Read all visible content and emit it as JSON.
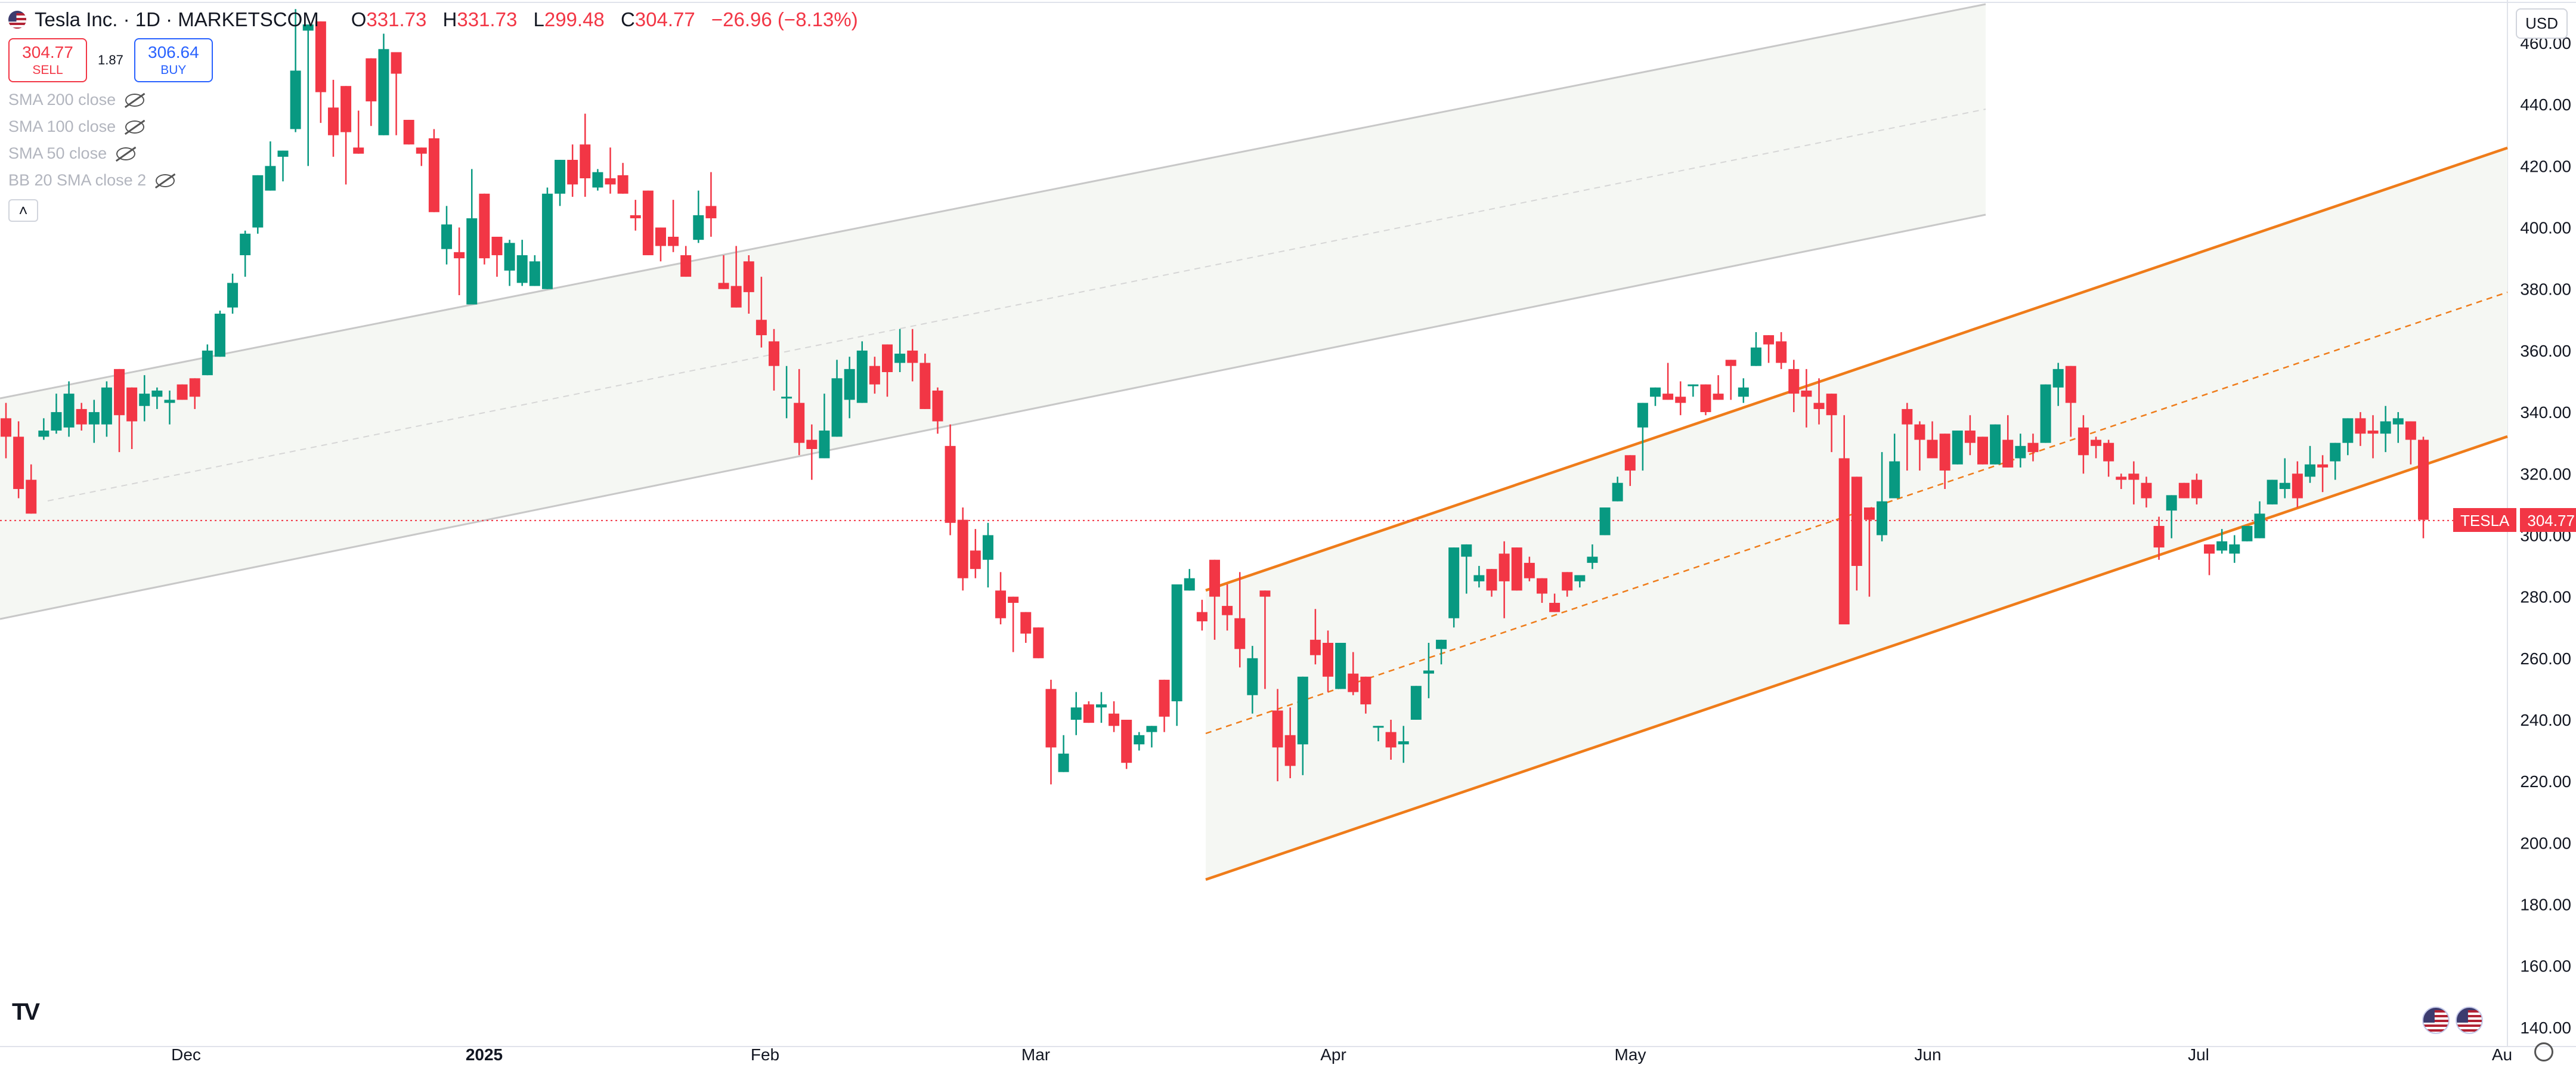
{
  "header": {
    "symbol_title": "Tesla Inc. · 1D · MARKETSCOM",
    "ohlc": [
      {
        "key": "O",
        "value": "331.73"
      },
      {
        "key": "H",
        "value": "331.73"
      },
      {
        "key": "L",
        "value": "299.48"
      },
      {
        "key": "C",
        "value": "304.77"
      }
    ],
    "change": "−26.96 (−8.13%)"
  },
  "trade": {
    "sell_price": "304.77",
    "sell_label": "SELL",
    "spread": "1.87",
    "buy_price": "306.64",
    "buy_label": "BUY"
  },
  "indicators": [
    {
      "label": "SMA 200 close"
    },
    {
      "label": "SMA 100 close"
    },
    {
      "label": "SMA 50 close"
    },
    {
      "label": "BB 20 SMA close 2"
    }
  ],
  "collapse_icon": "chevron-up-icon",
  "currency": "USD",
  "last_price_label": {
    "symbol": "TESLA",
    "price": "304.77"
  },
  "colors": {
    "up": "#089981",
    "down": "#f23645",
    "channel": "#ef7c1a",
    "channel_old": "#c8c8c8",
    "fill": "#f5f7f3"
  },
  "chart_data": {
    "type": "candlestick",
    "title": "",
    "y_axis": {
      "range": [
        135,
        465
      ],
      "tick_labels": [
        "140.00",
        "160.00",
        "180.00",
        "200.00",
        "220.00",
        "240.00",
        "260.00",
        "280.00",
        "300.00",
        "320.00",
        "340.00",
        "360.00",
        "380.00",
        "400.00",
        "420.00",
        "440.00",
        "460.00"
      ]
    },
    "x_axis": {
      "labels": [
        "Dec",
        "2025",
        "Feb",
        "Mar",
        "Apr",
        "May",
        "Jun",
        "Jul",
        "Au"
      ]
    },
    "last_close": 304.77,
    "candles": [
      [
        338,
        332,
        343,
        325
      ],
      [
        332,
        315,
        337,
        312
      ],
      [
        318,
        307,
        323,
        307
      ],
      [
        332,
        334,
        338,
        331
      ],
      [
        334,
        340,
        346,
        333
      ],
      [
        335,
        346,
        350,
        332
      ],
      [
        341,
        336,
        343,
        334
      ],
      [
        336,
        340,
        344,
        330
      ],
      [
        336,
        348,
        350,
        332
      ],
      [
        354,
        339,
        353,
        327
      ],
      [
        348,
        337,
        345,
        328
      ],
      [
        342,
        346,
        352,
        337
      ],
      [
        345,
        347,
        348,
        341
      ],
      [
        343,
        344,
        347,
        336
      ],
      [
        349,
        344,
        348,
        344
      ],
      [
        351,
        345,
        349,
        341
      ],
      [
        352,
        360,
        362,
        355
      ],
      [
        358,
        372,
        373,
        370
      ],
      [
        374,
        382,
        385,
        372
      ],
      [
        391,
        398,
        399,
        384
      ],
      [
        400,
        417,
        415,
        398
      ],
      [
        412,
        420,
        428,
        417
      ],
      [
        423,
        425,
        421,
        415
      ],
      [
        432,
        451,
        471,
        431
      ],
      [
        464,
        466,
        465,
        420
      ],
      [
        467,
        444,
        464,
        434
      ],
      [
        439,
        430,
        448,
        423
      ],
      [
        446,
        431,
        444,
        414
      ],
      [
        426,
        424,
        438,
        424
      ],
      [
        455,
        441,
        454,
        433
      ],
      [
        430,
        458,
        463,
        448
      ],
      [
        457,
        450,
        457,
        430
      ],
      [
        435,
        427,
        434,
        430
      ],
      [
        426,
        424,
        425,
        420
      ],
      [
        429,
        405,
        432,
        405
      ],
      [
        393,
        401,
        407,
        388
      ],
      [
        392,
        390,
        400,
        378
      ],
      [
        375,
        403,
        419,
        376
      ],
      [
        411,
        390,
        410,
        388
      ],
      [
        397,
        391,
        394,
        384
      ],
      [
        386,
        395,
        396,
        381
      ],
      [
        382,
        391,
        396,
        381
      ],
      [
        381,
        389,
        391,
        384
      ],
      [
        380,
        411,
        413,
        380
      ],
      [
        411,
        422,
        421,
        407
      ],
      [
        422,
        414,
        427,
        410
      ],
      [
        427,
        416,
        437,
        410
      ],
      [
        413,
        418,
        419,
        412
      ],
      [
        416,
        414,
        426,
        411
      ],
      [
        417,
        411,
        421,
        413
      ],
      [
        404,
        403,
        409,
        399
      ],
      [
        412,
        391,
        410,
        391
      ],
      [
        400,
        394,
        398,
        389
      ],
      [
        397,
        394,
        409,
        392
      ],
      [
        391,
        384,
        394,
        390
      ],
      [
        396,
        404,
        412,
        395
      ],
      [
        407,
        403,
        418,
        397
      ],
      [
        382,
        380,
        391,
        384
      ],
      [
        381,
        374,
        394,
        380
      ],
      [
        389,
        379,
        391,
        372
      ],
      [
        370,
        365,
        384,
        361
      ],
      [
        363,
        355,
        367,
        347
      ],
      [
        345,
        345,
        355,
        338
      ],
      [
        343,
        330,
        354,
        326
      ],
      [
        331,
        328,
        336,
        318
      ],
      [
        325,
        334,
        346,
        329
      ],
      [
        332,
        351,
        357,
        345
      ],
      [
        344,
        354,
        358,
        338
      ],
      [
        343,
        360,
        363,
        351
      ],
      [
        355,
        349,
        358,
        346
      ],
      [
        362,
        353,
        360,
        345
      ],
      [
        356,
        359,
        367,
        353
      ],
      [
        360,
        356,
        367,
        350
      ],
      [
        356,
        341,
        359,
        344
      ],
      [
        347,
        337,
        348,
        333
      ],
      [
        329,
        304,
        336,
        300
      ],
      [
        305,
        286,
        309,
        282
      ],
      [
        295,
        289,
        302,
        286
      ],
      [
        292,
        300,
        304,
        283
      ],
      [
        282,
        273,
        288,
        271
      ],
      [
        280,
        278,
        277,
        262
      ],
      [
        275,
        268,
        273,
        265
      ],
      [
        270,
        260,
        263,
        260
      ],
      [
        250,
        231,
        253,
        219
      ],
      [
        223,
        229,
        235,
        225
      ],
      [
        240,
        244,
        249,
        235
      ],
      [
        245,
        239,
        246,
        239
      ],
      [
        244,
        245,
        249,
        239
      ],
      [
        242,
        238,
        246,
        236
      ],
      [
        240,
        226,
        238,
        224
      ],
      [
        232,
        235,
        236,
        230
      ],
      [
        236,
        238,
        238,
        231
      ],
      [
        253,
        241,
        243,
        236
      ],
      [
        246,
        284,
        284,
        238
      ],
      [
        282,
        286,
        289,
        284
      ],
      [
        275,
        272,
        279,
        269
      ],
      [
        292,
        280,
        289,
        266
      ],
      [
        277,
        274,
        284,
        269
      ],
      [
        273,
        263,
        288,
        257
      ],
      [
        248,
        260,
        264,
        242
      ],
      [
        282,
        280,
        270,
        250
      ],
      [
        243,
        231,
        250,
        220
      ],
      [
        235,
        225,
        244,
        221
      ],
      [
        232,
        254,
        254,
        222
      ],
      [
        266,
        261,
        276,
        258
      ],
      [
        265,
        254,
        269,
        249
      ],
      [
        250,
        265,
        260,
        253
      ],
      [
        255,
        249,
        262,
        248
      ],
      [
        254,
        245,
        250,
        242
      ],
      [
        238,
        238,
        237,
        233
      ],
      [
        236,
        231,
        240,
        227
      ],
      [
        232,
        233,
        238,
        226
      ],
      [
        240,
        251,
        250,
        241
      ],
      [
        255,
        256,
        265,
        247
      ],
      [
        263,
        266,
        263,
        258
      ],
      [
        273,
        296,
        293,
        270
      ],
      [
        293,
        297,
        295,
        281
      ],
      [
        285,
        287,
        290,
        283
      ],
      [
        289,
        282,
        285,
        280
      ],
      [
        294,
        285,
        298,
        273
      ],
      [
        296,
        282,
        287,
        286
      ],
      [
        291,
        286,
        293,
        285
      ],
      [
        286,
        281,
        286,
        278
      ],
      [
        278,
        275,
        281,
        275
      ],
      [
        288,
        282,
        283,
        280
      ],
      [
        285,
        287,
        286,
        283
      ],
      [
        291,
        293,
        297,
        289
      ],
      [
        300,
        309,
        306,
        300
      ],
      [
        311,
        317,
        319,
        313
      ],
      [
        326,
        321,
        322,
        316
      ],
      [
        335,
        343,
        339,
        321
      ],
      [
        345,
        348,
        343,
        342
      ],
      [
        346,
        344,
        356,
        345
      ],
      [
        345,
        343,
        350,
        339
      ],
      [
        349,
        349,
        348,
        345
      ],
      [
        349,
        340,
        346,
        339
      ],
      [
        346,
        344,
        352,
        344
      ],
      [
        357,
        355,
        356,
        344
      ],
      [
        345,
        348,
        351,
        343
      ],
      [
        355,
        361,
        366,
        358
      ],
      [
        365,
        362,
        363,
        356
      ],
      [
        363,
        356,
        366,
        354
      ],
      [
        354,
        346,
        357,
        340
      ],
      [
        347,
        345,
        354,
        335
      ],
      [
        343,
        341,
        351,
        336
      ],
      [
        346,
        339,
        340,
        327
      ],
      [
        325,
        271,
        339,
        272
      ],
      [
        319,
        290,
        314,
        282
      ],
      [
        309,
        305,
        309,
        280
      ],
      [
        300,
        311,
        327,
        298
      ],
      [
        312,
        324,
        333,
        319
      ],
      [
        341,
        336,
        343,
        321
      ],
      [
        336,
        331,
        337,
        321
      ],
      [
        331,
        325,
        337,
        325
      ],
      [
        333,
        321,
        329,
        315
      ],
      [
        323,
        334,
        333,
        333
      ],
      [
        334,
        330,
        339,
        326
      ],
      [
        332,
        323,
        332,
        326
      ],
      [
        323,
        336,
        334,
        329
      ],
      [
        331,
        322,
        339,
        325
      ],
      [
        325,
        329,
        333,
        322
      ],
      [
        330,
        327,
        333,
        324
      ],
      [
        330,
        349,
        349,
        344
      ],
      [
        348,
        354,
        356,
        342
      ],
      [
        355,
        343,
        353,
        332
      ],
      [
        335,
        326,
        339,
        320
      ],
      [
        331,
        329,
        332,
        325
      ],
      [
        330,
        324,
        331,
        319
      ],
      [
        319,
        318,
        320,
        315
      ],
      [
        320,
        318,
        324,
        310
      ],
      [
        317,
        312,
        319,
        309
      ],
      [
        303,
        296,
        306,
        292
      ],
      [
        308,
        313,
        310,
        299
      ],
      [
        317,
        312,
        316,
        312
      ],
      [
        318,
        312,
        320,
        310
      ],
      [
        297,
        294,
        295,
        287
      ],
      [
        295,
        298,
        302,
        294
      ],
      [
        294,
        297,
        300,
        291
      ],
      [
        298,
        303,
        303,
        298
      ],
      [
        299,
        307,
        311,
        299
      ],
      [
        310,
        318,
        317,
        311
      ],
      [
        315,
        317,
        325,
        312
      ],
      [
        320,
        312,
        324,
        309
      ],
      [
        319,
        323,
        329,
        317
      ],
      [
        323,
        322,
        326,
        314
      ],
      [
        324,
        330,
        328,
        318
      ],
      [
        330,
        338,
        338,
        326
      ],
      [
        338,
        333,
        340,
        329
      ],
      [
        334,
        333,
        339,
        325
      ],
      [
        333,
        337,
        342,
        327
      ],
      [
        336,
        338,
        340,
        330
      ],
      [
        337,
        331,
        337,
        323
      ],
      [
        331,
        305,
        332,
        299
      ]
    ]
  }
}
